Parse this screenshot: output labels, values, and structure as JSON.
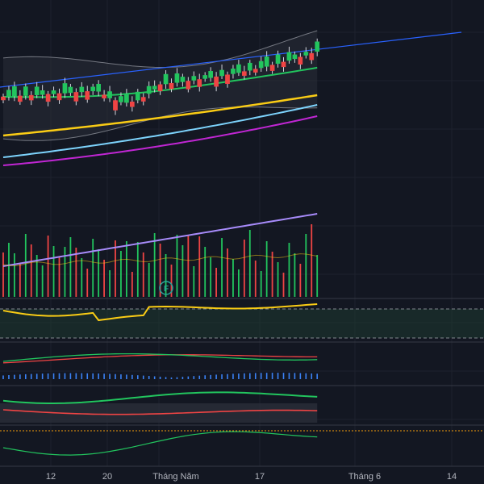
{
  "colors": {
    "background": "#131722",
    "grid": "#1e222d",
    "separator": "#363a45",
    "up": "#22c55e",
    "down": "#ef4444",
    "candle_wick": "#d1d4dc",
    "bollinger_band": "#b2b5be",
    "bollinger_fill": "#2a2e39",
    "ma_green": "#22c55e",
    "ma_yellow": "#facc15",
    "ma_cyan": "#7dd3fc",
    "ma_magenta": "#c026d3",
    "trendline": "#2962ff",
    "volume_ma": "#a78bfa",
    "rsi_line": "#facc15",
    "rsi_band": "#1e3b2f",
    "macd_line": "#22c55e",
    "macd_signal": "#ef4444",
    "macd_hist": "#3b82f6",
    "dmi_plus": "#22c55e",
    "dmi_minus": "#ef4444",
    "bottom_line": "#22c55e",
    "bottom_dotted": "#f59e0b",
    "event_marker": "#26a69a"
  },
  "chart_data": {
    "type": "candlestick",
    "x_axis_labels": [
      "12",
      "20",
      "Tháng Năm",
      "17",
      "Tháng 6",
      "14"
    ],
    "event_marker": "F",
    "panels": [
      "price",
      "volume",
      "rsi",
      "macd",
      "dmi",
      "indicator"
    ]
  }
}
